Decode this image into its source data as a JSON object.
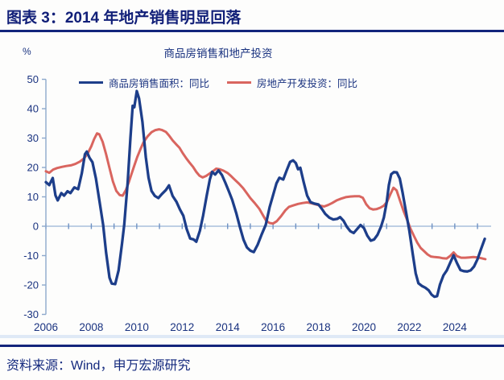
{
  "header": {
    "title": "图表 3：2014 年地产销售明显回落"
  },
  "footer": {
    "source": "资料来源：Wind，申万宏源研究"
  },
  "colors": {
    "navy_text": "#1a3380",
    "header_navy": "#111f78",
    "rule_navy": "#13257c",
    "blue_line": "#1d3e8a",
    "red_line": "#d9655f",
    "axis": "#8ca8cc",
    "zero_line": "#a9c0dc",
    "tick": "#6f92c4",
    "bottom_band": "#dfe9f6"
  },
  "chart_data": {
    "type": "line",
    "title": "商品房销售和地产投资",
    "unit_label": "%",
    "xlabel": "",
    "ylabel": "%",
    "xlim": [
      2006,
      2025.6
    ],
    "ylim": [
      -30,
      50
    ],
    "y_ticks": [
      50,
      40,
      30,
      20,
      10,
      0,
      -10,
      -20,
      -30
    ],
    "x_ticks_years": [
      2006,
      2007,
      2008,
      2009,
      2010,
      2011,
      2012,
      2013,
      2014,
      2015,
      2016,
      2017,
      2018,
      2019,
      2020,
      2021,
      2022,
      2023,
      2024,
      2025
    ],
    "x_label_years": [
      2006,
      2008,
      2010,
      2012,
      2014,
      2016,
      2018,
      2020,
      2022,
      2024
    ],
    "grid": "zero-baseline-only",
    "legend_position": "top-center",
    "series": [
      {
        "name": "商品房销售面积：同比",
        "color": "#1d3e8a",
        "width": 3.3,
        "points": [
          [
            2006.0,
            15.0
          ],
          [
            2006.15,
            14.0
          ],
          [
            2006.3,
            16.4
          ],
          [
            2006.42,
            10.5
          ],
          [
            2006.52,
            8.8
          ],
          [
            2006.68,
            11.3
          ],
          [
            2006.8,
            10.4
          ],
          [
            2006.95,
            11.9
          ],
          [
            2007.08,
            11.3
          ],
          [
            2007.25,
            13.2
          ],
          [
            2007.42,
            12.6
          ],
          [
            2007.58,
            18.0
          ],
          [
            2007.72,
            24.5
          ],
          [
            2007.8,
            25.4
          ],
          [
            2007.92,
            23.3
          ],
          [
            2008.05,
            21.8
          ],
          [
            2008.2,
            16.3
          ],
          [
            2008.35,
            9.0
          ],
          [
            2008.52,
            0.5
          ],
          [
            2008.65,
            -9.0
          ],
          [
            2008.8,
            -17.5
          ],
          [
            2008.9,
            -19.5
          ],
          [
            2009.05,
            -19.7
          ],
          [
            2009.2,
            -15.0
          ],
          [
            2009.35,
            -6.0
          ],
          [
            2009.45,
            0.5
          ],
          [
            2009.6,
            15.0
          ],
          [
            2009.72,
            30.0
          ],
          [
            2009.82,
            41.0
          ],
          [
            2009.89,
            40.5
          ],
          [
            2010.0,
            46.0
          ],
          [
            2010.1,
            43.5
          ],
          [
            2010.25,
            35.5
          ],
          [
            2010.4,
            23.5
          ],
          [
            2010.52,
            16.5
          ],
          [
            2010.65,
            12.0
          ],
          [
            2010.8,
            10.3
          ],
          [
            2010.95,
            9.6
          ],
          [
            2011.1,
            10.9
          ],
          [
            2011.28,
            12.3
          ],
          [
            2011.42,
            13.9
          ],
          [
            2011.58,
            10.3
          ],
          [
            2011.75,
            8.3
          ],
          [
            2011.9,
            5.7
          ],
          [
            2012.05,
            3.6
          ],
          [
            2012.2,
            -1.0
          ],
          [
            2012.35,
            -4.2
          ],
          [
            2012.5,
            -4.5
          ],
          [
            2012.62,
            -5.3
          ],
          [
            2012.78,
            -1.5
          ],
          [
            2012.92,
            3.5
          ],
          [
            2013.08,
            10.5
          ],
          [
            2013.22,
            16.0
          ],
          [
            2013.32,
            18.5
          ],
          [
            2013.45,
            17.6
          ],
          [
            2013.6,
            19.0
          ],
          [
            2013.75,
            17.4
          ],
          [
            2013.9,
            14.8
          ],
          [
            2014.05,
            12.0
          ],
          [
            2014.2,
            9.0
          ],
          [
            2014.38,
            4.5
          ],
          [
            2014.55,
            -0.5
          ],
          [
            2014.7,
            -4.6
          ],
          [
            2014.85,
            -7.2
          ],
          [
            2015.0,
            -8.3
          ],
          [
            2015.15,
            -8.8
          ],
          [
            2015.32,
            -6.3
          ],
          [
            2015.5,
            -2.8
          ],
          [
            2015.68,
            0.5
          ],
          [
            2015.85,
            6.5
          ],
          [
            2016.0,
            10.5
          ],
          [
            2016.15,
            14.6
          ],
          [
            2016.28,
            16.5
          ],
          [
            2016.45,
            15.9
          ],
          [
            2016.6,
            19.0
          ],
          [
            2016.75,
            21.9
          ],
          [
            2016.88,
            22.4
          ],
          [
            2017.0,
            21.5
          ],
          [
            2017.1,
            19.4
          ],
          [
            2017.2,
            19.9
          ],
          [
            2017.35,
            15.0
          ],
          [
            2017.5,
            10.4
          ],
          [
            2017.65,
            8.2
          ],
          [
            2017.82,
            7.7
          ],
          [
            2018.0,
            7.4
          ],
          [
            2018.15,
            5.9
          ],
          [
            2018.3,
            4.2
          ],
          [
            2018.48,
            2.9
          ],
          [
            2018.65,
            2.3
          ],
          [
            2018.82,
            2.5
          ],
          [
            2018.95,
            3.1
          ],
          [
            2019.1,
            1.9
          ],
          [
            2019.25,
            -0.2
          ],
          [
            2019.4,
            -1.7
          ],
          [
            2019.55,
            -2.3
          ],
          [
            2019.7,
            -1.0
          ],
          [
            2019.85,
            0.4
          ],
          [
            2020.0,
            -0.6
          ],
          [
            2020.15,
            -3.2
          ],
          [
            2020.3,
            -4.9
          ],
          [
            2020.45,
            -4.5
          ],
          [
            2020.6,
            -2.9
          ],
          [
            2020.75,
            -0.2
          ],
          [
            2020.88,
            3.0
          ],
          [
            2021.0,
            8.0
          ],
          [
            2021.1,
            14.0
          ],
          [
            2021.2,
            17.7
          ],
          [
            2021.32,
            18.4
          ],
          [
            2021.45,
            18.3
          ],
          [
            2021.58,
            16.2
          ],
          [
            2021.7,
            11.5
          ],
          [
            2021.85,
            5.0
          ],
          [
            2022.0,
            -1.5
          ],
          [
            2022.15,
            -9.5
          ],
          [
            2022.28,
            -16.0
          ],
          [
            2022.4,
            -19.4
          ],
          [
            2022.55,
            -20.3
          ],
          [
            2022.7,
            -20.9
          ],
          [
            2022.85,
            -21.8
          ],
          [
            2022.98,
            -23.3
          ],
          [
            2023.1,
            -24.0
          ],
          [
            2023.22,
            -23.8
          ],
          [
            2023.35,
            -19.8
          ],
          [
            2023.5,
            -16.7
          ],
          [
            2023.65,
            -15.0
          ],
          [
            2023.8,
            -12.4
          ],
          [
            2023.95,
            -9.9
          ],
          [
            2024.1,
            -12.6
          ],
          [
            2024.25,
            -14.9
          ],
          [
            2024.4,
            -15.3
          ],
          [
            2024.55,
            -15.4
          ],
          [
            2024.7,
            -15.0
          ],
          [
            2024.85,
            -13.7
          ],
          [
            2025.0,
            -11.2
          ],
          [
            2025.15,
            -7.9
          ],
          [
            2025.32,
            -4.3
          ]
        ]
      },
      {
        "name": "房地产开发投资：同比",
        "color": "#d9655f",
        "width": 3.0,
        "points": [
          [
            2006.0,
            18.7
          ],
          [
            2006.15,
            18.2
          ],
          [
            2006.32,
            19.3
          ],
          [
            2006.5,
            19.8
          ],
          [
            2006.7,
            20.2
          ],
          [
            2006.9,
            20.5
          ],
          [
            2007.1,
            20.7
          ],
          [
            2007.3,
            21.2
          ],
          [
            2007.5,
            22.0
          ],
          [
            2007.68,
            23.1
          ],
          [
            2007.85,
            24.9
          ],
          [
            2008.0,
            27.2
          ],
          [
            2008.12,
            29.6
          ],
          [
            2008.25,
            31.6
          ],
          [
            2008.35,
            31.3
          ],
          [
            2008.5,
            28.7
          ],
          [
            2008.65,
            24.5
          ],
          [
            2008.8,
            19.8
          ],
          [
            2008.95,
            15.3
          ],
          [
            2009.1,
            12.0
          ],
          [
            2009.25,
            10.6
          ],
          [
            2009.38,
            10.4
          ],
          [
            2009.52,
            12.3
          ],
          [
            2009.65,
            15.0
          ],
          [
            2009.78,
            18.0
          ],
          [
            2009.9,
            20.8
          ],
          [
            2010.02,
            23.5
          ],
          [
            2010.16,
            26.2
          ],
          [
            2010.3,
            28.6
          ],
          [
            2010.48,
            30.6
          ],
          [
            2010.65,
            32.0
          ],
          [
            2010.82,
            32.7
          ],
          [
            2010.98,
            33.0
          ],
          [
            2011.12,
            32.7
          ],
          [
            2011.28,
            32.1
          ],
          [
            2011.42,
            30.9
          ],
          [
            2011.58,
            29.2
          ],
          [
            2011.72,
            28.0
          ],
          [
            2011.88,
            26.7
          ],
          [
            2012.02,
            24.9
          ],
          [
            2012.18,
            23.1
          ],
          [
            2012.32,
            21.7
          ],
          [
            2012.48,
            20.2
          ],
          [
            2012.62,
            18.5
          ],
          [
            2012.76,
            17.2
          ],
          [
            2012.9,
            16.6
          ],
          [
            2013.05,
            17.1
          ],
          [
            2013.2,
            17.9
          ],
          [
            2013.35,
            18.7
          ],
          [
            2013.5,
            19.6
          ],
          [
            2013.65,
            19.4
          ],
          [
            2013.82,
            18.9
          ],
          [
            2014.0,
            18.1
          ],
          [
            2014.16,
            17.0
          ],
          [
            2014.32,
            15.8
          ],
          [
            2014.5,
            14.5
          ],
          [
            2014.68,
            13.0
          ],
          [
            2014.84,
            11.3
          ],
          [
            2015.0,
            9.6
          ],
          [
            2015.2,
            7.8
          ],
          [
            2015.4,
            5.9
          ],
          [
            2015.56,
            3.7
          ],
          [
            2015.7,
            1.8
          ],
          [
            2015.85,
            1.1
          ],
          [
            2016.0,
            0.9
          ],
          [
            2016.16,
            1.7
          ],
          [
            2016.35,
            3.4
          ],
          [
            2016.54,
            5.4
          ],
          [
            2016.7,
            6.6
          ],
          [
            2016.9,
            7.1
          ],
          [
            2017.1,
            7.6
          ],
          [
            2017.3,
            7.9
          ],
          [
            2017.5,
            8.1
          ],
          [
            2017.7,
            7.8
          ],
          [
            2017.9,
            7.4
          ],
          [
            2018.08,
            7.0
          ],
          [
            2018.25,
            6.7
          ],
          [
            2018.42,
            7.2
          ],
          [
            2018.6,
            7.9
          ],
          [
            2018.8,
            8.8
          ],
          [
            2019.0,
            9.4
          ],
          [
            2019.2,
            9.9
          ],
          [
            2019.4,
            10.1
          ],
          [
            2019.6,
            10.2
          ],
          [
            2019.8,
            10.2
          ],
          [
            2019.95,
            9.7
          ],
          [
            2020.1,
            7.5
          ],
          [
            2020.25,
            6.1
          ],
          [
            2020.4,
            5.7
          ],
          [
            2020.55,
            5.8
          ],
          [
            2020.72,
            6.3
          ],
          [
            2020.88,
            7.0
          ],
          [
            2021.02,
            8.3
          ],
          [
            2021.16,
            10.8
          ],
          [
            2021.3,
            13.1
          ],
          [
            2021.44,
            12.2
          ],
          [
            2021.58,
            8.9
          ],
          [
            2021.74,
            5.3
          ],
          [
            2021.9,
            2.2
          ],
          [
            2022.05,
            -0.8
          ],
          [
            2022.2,
            -3.3
          ],
          [
            2022.35,
            -5.6
          ],
          [
            2022.5,
            -7.4
          ],
          [
            2022.65,
            -8.5
          ],
          [
            2022.8,
            -9.6
          ],
          [
            2022.95,
            -10.3
          ],
          [
            2023.12,
            -10.5
          ],
          [
            2023.3,
            -10.6
          ],
          [
            2023.48,
            -10.9
          ],
          [
            2023.64,
            -11.0
          ],
          [
            2023.8,
            -10.1
          ],
          [
            2023.95,
            -8.9
          ],
          [
            2024.1,
            -10.2
          ],
          [
            2024.28,
            -10.7
          ],
          [
            2024.46,
            -10.7
          ],
          [
            2024.64,
            -10.6
          ],
          [
            2024.82,
            -10.5
          ],
          [
            2025.0,
            -10.6
          ],
          [
            2025.18,
            -10.9
          ],
          [
            2025.35,
            -11.2
          ]
        ]
      }
    ]
  }
}
